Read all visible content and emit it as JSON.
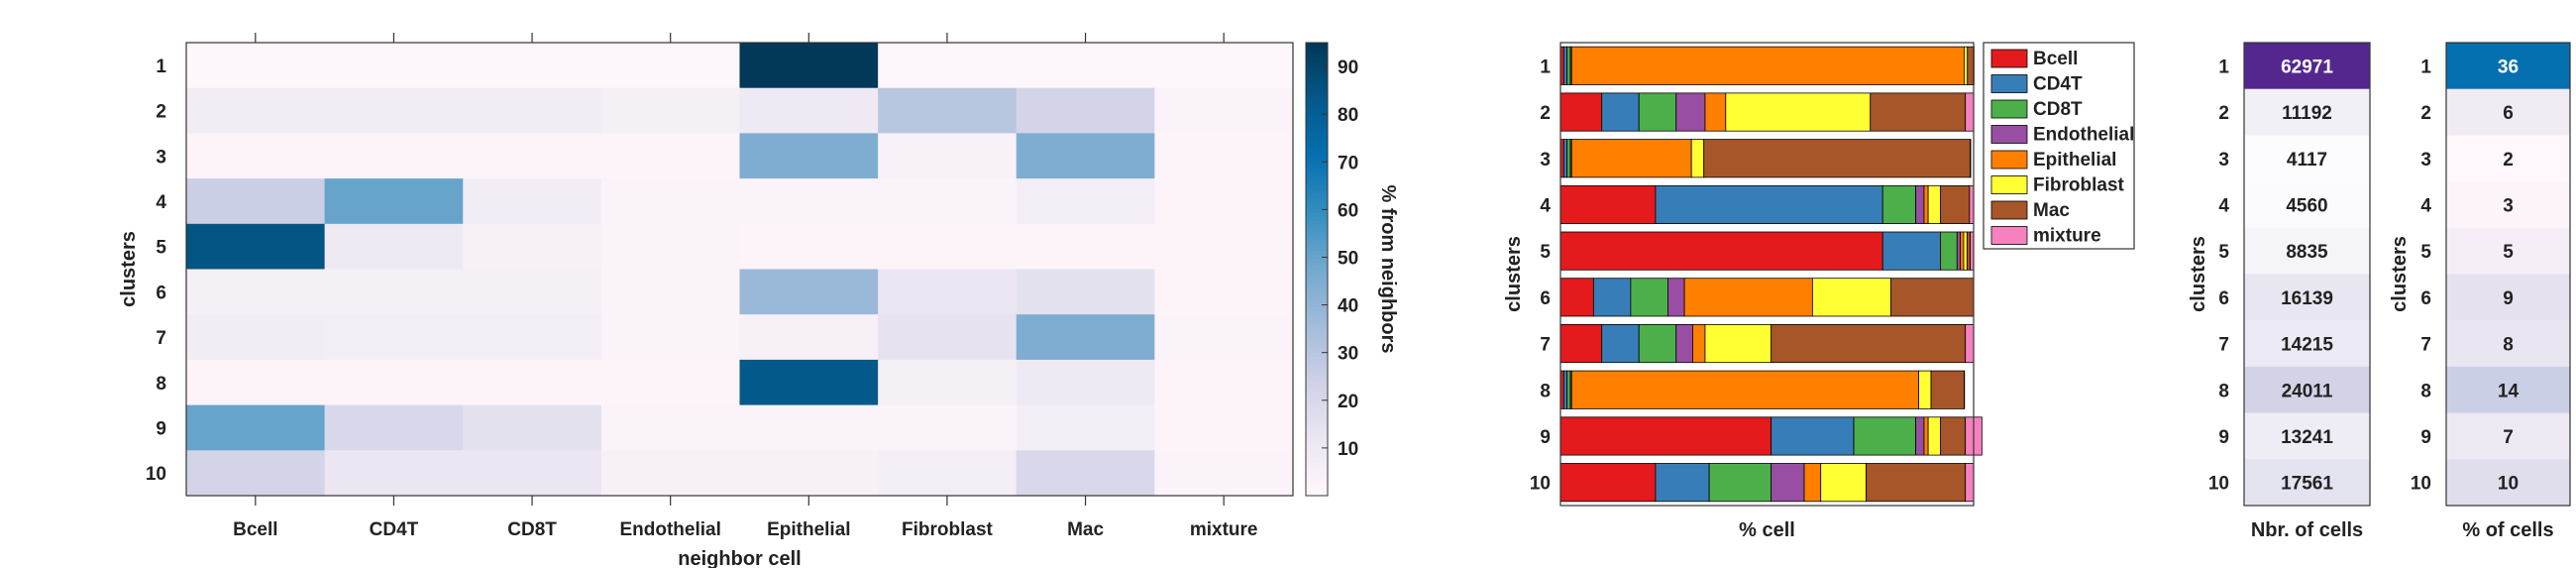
{
  "chart_data": [
    {
      "type": "heatmap",
      "xlabel": "neighbor cell",
      "ylabel": "clusters",
      "colorbar_label": "% from neighbors",
      "colorbar_ticks": [
        10,
        20,
        30,
        40,
        50,
        60,
        70,
        80,
        90
      ],
      "clim": [
        0,
        95
      ],
      "x_categories": [
        "Bcell",
        "CD4T",
        "CD8T",
        "Endothelial",
        "Epithelial",
        "Fibroblast",
        "Mac",
        "mixture"
      ],
      "y_categories": [
        "1",
        "2",
        "3",
        "4",
        "5",
        "6",
        "7",
        "8",
        "9",
        "10"
      ],
      "values": [
        [
          1,
          1,
          1,
          1,
          95,
          1,
          1,
          1
        ],
        [
          8,
          8,
          8,
          6,
          10,
          30,
          22,
          3
        ],
        [
          2,
          2,
          2,
          2,
          45,
          4,
          45,
          2
        ],
        [
          25,
          50,
          8,
          3,
          3,
          3,
          7,
          2
        ],
        [
          85,
          10,
          5,
          3,
          2,
          2,
          2,
          2
        ],
        [
          6,
          6,
          6,
          3,
          38,
          12,
          15,
          2
        ],
        [
          8,
          7,
          7,
          3,
          5,
          14,
          45,
          3
        ],
        [
          2,
          2,
          2,
          2,
          83,
          6,
          10,
          2
        ],
        [
          50,
          20,
          15,
          3,
          3,
          3,
          7,
          2
        ],
        [
          22,
          12,
          12,
          5,
          5,
          7,
          20,
          3
        ]
      ]
    },
    {
      "type": "bar",
      "orientation": "horizontal",
      "stacked": true,
      "xlabel": "% cell",
      "ylabel": "clusters",
      "xlim": [
        0,
        100
      ],
      "categories": [
        "1",
        "2",
        "3",
        "4",
        "5",
        "6",
        "7",
        "8",
        "9",
        "10"
      ],
      "legend_position": "right",
      "series": [
        {
          "name": "Bcell",
          "color": "#e41a1c",
          "values": [
            0.8,
            10,
            0.8,
            23,
            78,
            8,
            10,
            0.8,
            51,
            23
          ]
        },
        {
          "name": "CD4T",
          "color": "#377eb8",
          "values": [
            0.8,
            9,
            0.8,
            55,
            14,
            9,
            9,
            0.8,
            20,
            13
          ]
        },
        {
          "name": "CD8T",
          "color": "#4daf4a",
          "values": [
            0.8,
            9,
            0.8,
            8,
            4,
            9,
            9,
            0.8,
            15,
            15
          ]
        },
        {
          "name": "Endothelial",
          "color": "#984ea3",
          "values": [
            0.3,
            7,
            0.3,
            2,
            0.8,
            4,
            4,
            0.3,
            2,
            8
          ]
        },
        {
          "name": "Epithelial",
          "color": "#ff7f00",
          "values": [
            95,
            5,
            29,
            1,
            0.8,
            31,
            3,
            84,
            1,
            4
          ]
        },
        {
          "name": "Fibroblast",
          "color": "#ffff33",
          "values": [
            0.8,
            35,
            3,
            3,
            0.8,
            19,
            16,
            3,
            3,
            11
          ]
        },
        {
          "name": "Mac",
          "color": "#a65628",
          "values": [
            1.5,
            23,
            64.5,
            7,
            0.8,
            20,
            47,
            8,
            6,
            24
          ]
        },
        {
          "name": "mixture",
          "color": "#f781bf",
          "values": [
            0.1,
            2,
            0.1,
            1,
            0.8,
            0,
            2,
            0.1,
            4,
            2
          ]
        }
      ]
    },
    {
      "type": "heatmap",
      "xlabel": "Nbr. of cells",
      "ylabel": "clusters",
      "y_categories": [
        "1",
        "2",
        "3",
        "4",
        "5",
        "6",
        "7",
        "8",
        "9",
        "10"
      ],
      "values": [
        62971,
        11192,
        4117,
        4560,
        8835,
        16139,
        14215,
        24011,
        13241,
        17561
      ],
      "labels": [
        "62971",
        "11192",
        "4117",
        "4560",
        "8835",
        "16139",
        "14215",
        "24011",
        "13241",
        "17561"
      ]
    },
    {
      "type": "heatmap",
      "xlabel": "% of cells",
      "ylabel": "clusters",
      "y_categories": [
        "1",
        "2",
        "3",
        "4",
        "5",
        "6",
        "7",
        "8",
        "9",
        "10"
      ],
      "values": [
        36,
        6,
        2,
        3,
        5,
        9,
        8,
        14,
        7,
        10
      ],
      "labels": [
        "36",
        "6",
        "2",
        "3",
        "5",
        "9",
        "8",
        "14",
        "7",
        "10"
      ]
    }
  ]
}
